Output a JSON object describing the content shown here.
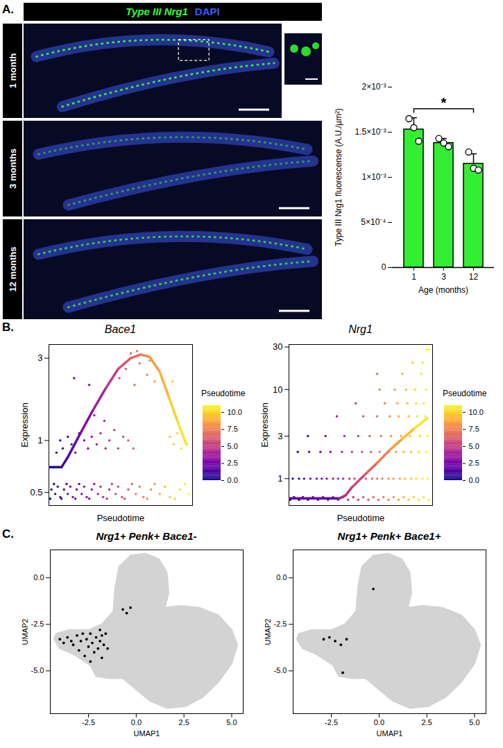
{
  "panel_labels": [
    "A.",
    "B.",
    "C."
  ],
  "micrographs": {
    "channels": [
      {
        "name": "Type III Nrg1",
        "color": "#33ff33"
      },
      {
        "name": "DAPI",
        "color": "#3a5bff"
      }
    ],
    "rows": [
      "1 month",
      "3 months",
      "12 months"
    ]
  },
  "chart_data": [
    {
      "type": "bar",
      "categories": [
        "1",
        "3",
        "12"
      ],
      "values": [
        0.00153,
        0.00138,
        0.00115
      ],
      "points": [
        [
          0.00165,
          0.00155,
          0.0014
        ],
        [
          0.00143,
          0.00138,
          0.00134
        ],
        [
          0.00128,
          0.0011,
          0.00108
        ]
      ],
      "error": [
        0.00013,
        5e-05,
        0.00011
      ],
      "color": "#33ee33",
      "x_label": "Age (months)",
      "y_label": "Type III Nrg1 fluorescense (A.U./µm²)",
      "ylim": [
        0,
        0.002
      ],
      "yticks": [
        0,
        {
          "value": 0.0005,
          "label": "5×10⁻⁴"
        },
        {
          "value": 0.001,
          "label": "1×10⁻³"
        },
        {
          "value": 0.0015,
          "label": "1.5×10⁻³"
        },
        {
          "value": 0.002,
          "label": "2×10⁻³"
        }
      ],
      "annotations": [
        {
          "text": "*",
          "from": "1",
          "to": "12"
        }
      ]
    },
    {
      "type": "scatter",
      "title": "Bace1",
      "x_label": "Pseudotime",
      "y_label": "Expression",
      "log": "y",
      "tick_labels": "y",
      "xlim": [
        0,
        11.4
      ],
      "xticks": [],
      "ylim": [
        0.42,
        3.6
      ],
      "yticks": [
        0.5,
        1,
        3
      ],
      "color": "plasma",
      "legend": "right",
      "colorbar": {
        "title": "Pseudotime",
        "range": [
          0,
          11
        ],
        "ticks": [
          {
            "value": 0,
            "label": "0.0"
          },
          {
            "value": 2.5,
            "label": "2.5"
          },
          {
            "value": 5,
            "label": "5.0"
          },
          {
            "value": 7.5,
            "label": "7.5"
          },
          {
            "value": 10,
            "label": "10.0"
          }
        ]
      },
      "x": [
        0.1,
        0.2,
        0.4,
        0.5,
        0.7,
        0.9,
        1.0,
        1.2,
        1.4,
        1.5,
        1.7,
        1.9,
        2.1,
        2.2,
        2.4,
        2.6,
        2.8,
        3.0,
        3.2,
        3.4,
        3.6,
        3.9,
        4.1,
        4.3,
        4.6,
        4.8,
        5.0,
        5.3,
        5.5,
        5.8,
        6.0,
        6.3,
        6.6,
        6.9,
        7.2,
        7.5,
        7.8,
        8.1,
        8.4,
        8.8,
        9.2,
        9.6,
        10.0,
        10.4,
        10.8,
        11.1,
        0.6,
        0.9,
        1.1,
        1.5,
        1.8,
        2.1,
        2.4,
        2.8,
        3.1,
        3.4,
        3.6,
        3.8,
        4.1,
        4.4,
        4.5,
        4.8,
        5.2,
        5.5,
        5.9,
        6.3,
        6.7,
        9.6,
        9.9,
        10.2,
        10.5,
        10.8,
        11.0,
        2.0,
        3.2,
        5.6,
        6.1,
        6.5,
        6.8,
        7.0,
        7.2,
        7.5,
        7.8,
        8.0,
        8.4,
        9.8
      ],
      "y": [
        0.46,
        0.52,
        0.56,
        0.49,
        0.54,
        0.47,
        0.46,
        0.52,
        0.56,
        0.49,
        0.54,
        0.47,
        0.46,
        0.52,
        0.56,
        0.49,
        0.54,
        0.47,
        0.46,
        0.52,
        0.56,
        0.49,
        0.54,
        0.47,
        0.46,
        0.52,
        0.56,
        0.49,
        0.54,
        0.47,
        0.46,
        0.52,
        0.56,
        0.49,
        0.54,
        0.47,
        0.46,
        0.52,
        0.56,
        0.49,
        0.54,
        0.47,
        0.46,
        0.52,
        0.56,
        0.49,
        0.85,
        1.0,
        0.9,
        1.05,
        0.95,
        0.85,
        1.1,
        1.0,
        0.9,
        1.05,
        1.4,
        0.95,
        1.1,
        1.3,
        0.9,
        1.0,
        1.15,
        0.9,
        1.05,
        1.0,
        0.9,
        1.05,
        0.95,
        1.1,
        0.9,
        1.0,
        0.95,
        2.3,
        2.1,
        2.3,
        2.6,
        3.2,
        2.1,
        3.3,
        2.8,
        3.1,
        2.4,
        2.9,
        2.2,
        2.2
      ],
      "trend": {
        "x": [
          0,
          1.0,
          1.5,
          2.5,
          3.5,
          4.5,
          5.5,
          6.5,
          7.3,
          8.0,
          8.8,
          9.5,
          10.2,
          10.9
        ],
        "y": [
          0.7,
          0.7,
          0.8,
          1.1,
          1.5,
          2.0,
          2.6,
          3.0,
          3.15,
          3.05,
          2.5,
          1.8,
          1.3,
          0.95
        ]
      }
    },
    {
      "type": "scatter",
      "title": "Nrg1",
      "x_label": "Pseudotime",
      "y_label": "Expression",
      "log": "y",
      "tick_labels": "y",
      "xlim": [
        0,
        11.4
      ],
      "xticks": [],
      "ylim": [
        0.5,
        32
      ],
      "yticks": [
        1,
        3,
        10,
        30
      ],
      "color": "plasma",
      "legend": "right",
      "colorbar": {
        "title": "Pseudotime",
        "range": [
          0,
          11
        ],
        "ticks": [
          {
            "value": 0,
            "label": "0.0"
          },
          {
            "value": 2.5,
            "label": "2.5"
          },
          {
            "value": 5,
            "label": "5.0"
          },
          {
            "value": 7.5,
            "label": "7.5"
          },
          {
            "value": 10,
            "label": "10.0"
          }
        ]
      },
      "x": [
        0.1,
        0.4,
        0.8,
        1.1,
        1.5,
        1.9,
        2.3,
        2.7,
        3.1,
        3.5,
        3.9,
        4.3,
        4.7,
        5.1,
        5.5,
        5.9,
        6.3,
        6.7,
        7.1,
        7.5,
        7.9,
        8.3,
        8.7,
        9.1,
        9.5,
        9.9,
        10.3,
        10.7,
        11.1,
        0.3,
        0.8,
        1.2,
        1.7,
        2.2,
        2.6,
        3.0,
        3.5,
        3.9,
        4.3,
        4.8,
        5.2,
        5.7,
        6.1,
        6.6,
        7.0,
        7.4,
        7.9,
        8.3,
        8.8,
        9.2,
        9.7,
        10.1,
        10.6,
        11.0,
        0.7,
        1.6,
        2.5,
        3.3,
        4.2,
        5.0,
        5.8,
        6.5,
        7.2,
        7.9,
        8.5,
        9.1,
        9.7,
        10.3,
        10.9,
        1.5,
        2.9,
        4.4,
        5.5,
        6.4,
        7.3,
        8.1,
        8.9,
        9.6,
        10.4,
        11.0,
        3.8,
        5.9,
        7.0,
        8.0,
        8.7,
        9.5,
        10.2,
        10.8,
        5.3,
        7.6,
        8.6,
        9.4,
        10.1,
        10.7,
        7.2,
        8.4,
        9.3,
        10.0,
        10.9,
        7.0,
        9.0,
        10.5,
        9.8,
        10.6,
        10.9,
        11.1
      ],
      "y": [
        0.58,
        0.62,
        0.58,
        0.62,
        0.58,
        0.62,
        0.58,
        0.62,
        0.58,
        0.62,
        0.58,
        0.62,
        0.58,
        0.62,
        0.58,
        0.62,
        0.58,
        0.62,
        0.58,
        0.62,
        0.58,
        0.62,
        0.58,
        0.62,
        0.58,
        0.62,
        0.58,
        0.62,
        0.58,
        1,
        1,
        1,
        1,
        1,
        1,
        1,
        1,
        1,
        1,
        1,
        1,
        1,
        1,
        1,
        1,
        1,
        1,
        1,
        1,
        1,
        1,
        1,
        1,
        1,
        2,
        2,
        2,
        2,
        2,
        2,
        2,
        2,
        2,
        2,
        2,
        2,
        2,
        2,
        2,
        3,
        3,
        3,
        3,
        3,
        3,
        3,
        3,
        3,
        3,
        3,
        5,
        5,
        5,
        5,
        5,
        5,
        5,
        5,
        7,
        7,
        7,
        7,
        7,
        7,
        10,
        10,
        10,
        10,
        10,
        15,
        15,
        15,
        20,
        20,
        28,
        28
      ],
      "trend": {
        "x": [
          0,
          4.0,
          4.5,
          5,
          6,
          7,
          8,
          9,
          10,
          11
        ],
        "y": [
          0.6,
          0.6,
          0.65,
          0.8,
          1.1,
          1.5,
          2.1,
          2.8,
          3.7,
          4.8
        ]
      }
    },
    {
      "type": "scatter",
      "title": "Nrg1+ Penk+ Bace1-",
      "x_label": "UMAP1",
      "y_label": "UMAP2",
      "xlim": [
        -4.5,
        5.6
      ],
      "xticks": [
        {
          "value": -2.5,
          "label": "-2.5"
        },
        {
          "value": 0,
          "label": "0.0"
        },
        {
          "value": 2.5,
          "label": "2.5"
        },
        {
          "value": 5,
          "label": "5.0"
        }
      ],
      "ylim": [
        -7.3,
        1.5
      ],
      "yticks": [
        {
          "value": -5,
          "label": "-5.0"
        },
        {
          "value": -2.5,
          "label": "-2.5"
        },
        {
          "value": 0,
          "label": "0.0"
        }
      ],
      "color": "#000000",
      "background": {
        "color": "#d3d3d3",
        "x": [
          -4.2,
          -3.5,
          -2.5,
          -1.8,
          -1.2,
          -1.1,
          -0.9,
          -0.3,
          0.5,
          1.2,
          1.6,
          1.7,
          1.5,
          2.3,
          3.3,
          4.3,
          5.0,
          5.3,
          5.0,
          4.3,
          3.5,
          2.6,
          1.6,
          0.7,
          0.0,
          -0.7,
          -1.4,
          -2.1,
          -2.4,
          -3.3,
          -4.0,
          -4.3
        ],
        "y": [
          -3.0,
          -2.8,
          -2.8,
          -2.5,
          -1.8,
          -0.5,
          0.6,
          1.2,
          1.3,
          1.0,
          0.3,
          -0.8,
          -1.6,
          -1.5,
          -1.6,
          -2.0,
          -2.8,
          -3.6,
          -4.6,
          -5.6,
          -6.4,
          -6.9,
          -7.0,
          -6.6,
          -6.0,
          -5.4,
          -5.4,
          -5.3,
          -4.7,
          -4.1,
          -3.8,
          -3.3
        ]
      },
      "x": [
        -4.0,
        -3.8,
        -3.6,
        -3.4,
        -3.3,
        -3.1,
        -2.9,
        -2.8,
        -2.6,
        -2.5,
        -2.4,
        -2.3,
        -2.2,
        -2.1,
        -2.0,
        -1.9,
        -1.8,
        -1.8,
        -1.7,
        -1.6,
        -1.5,
        -2.7,
        -3.0,
        -0.7,
        -0.5,
        -0.3,
        -1.9,
        -2.4
      ],
      "y": [
        -3.3,
        -3.5,
        -3.2,
        -3.4,
        -3.6,
        -3.1,
        -3.4,
        -3.0,
        -3.3,
        -3.7,
        -3.0,
        -3.5,
        -4.0,
        -3.2,
        -3.8,
        -3.4,
        -3.1,
        -4.3,
        -3.6,
        -3.0,
        -3.8,
        -4.2,
        -3.9,
        -1.7,
        -1.9,
        -1.6,
        -2.8,
        -4.5
      ]
    },
    {
      "type": "scatter",
      "title": "Nrg1+ Penk+ Bace1+",
      "x_label": "UMAP1",
      "y_label": "UMAP2",
      "xlim": [
        -4.5,
        5.6
      ],
      "xticks": [
        {
          "value": -2.5,
          "label": "-2.5"
        },
        {
          "value": 0,
          "label": "0.0"
        },
        {
          "value": 2.5,
          "label": "2.5"
        },
        {
          "value": 5,
          "label": "5.0"
        }
      ],
      "ylim": [
        -7.3,
        1.5
      ],
      "yticks": [
        {
          "value": -5,
          "label": "-5.0"
        },
        {
          "value": -2.5,
          "label": "-2.5"
        },
        {
          "value": 0,
          "label": "0.0"
        }
      ],
      "color": "#000000",
      "background": {
        "color": "#d3d3d3",
        "x": [
          -4.2,
          -3.5,
          -2.5,
          -1.8,
          -1.2,
          -1.1,
          -0.9,
          -0.3,
          0.5,
          1.2,
          1.6,
          1.7,
          1.5,
          2.3,
          3.3,
          4.3,
          5.0,
          5.3,
          5.0,
          4.3,
          3.5,
          2.6,
          1.6,
          0.7,
          0.0,
          -0.7,
          -1.4,
          -2.1,
          -2.4,
          -3.3,
          -4.0,
          -4.3
        ],
        "y": [
          -3.0,
          -2.8,
          -2.8,
          -2.5,
          -1.8,
          -0.5,
          0.6,
          1.2,
          1.3,
          1.0,
          0.3,
          -0.8,
          -1.6,
          -1.5,
          -1.6,
          -2.0,
          -2.8,
          -3.6,
          -4.6,
          -5.6,
          -6.4,
          -6.9,
          -7.0,
          -6.6,
          -6.0,
          -5.4,
          -5.4,
          -5.3,
          -4.7,
          -4.1,
          -3.8,
          -3.3
        ]
      },
      "x": [
        -2.9,
        -2.6,
        -2.3,
        -2.0,
        -1.7,
        -1.9,
        -0.3
      ],
      "y": [
        -3.3,
        -3.2,
        -3.4,
        -3.6,
        -3.3,
        -5.1,
        -0.6
      ]
    }
  ]
}
